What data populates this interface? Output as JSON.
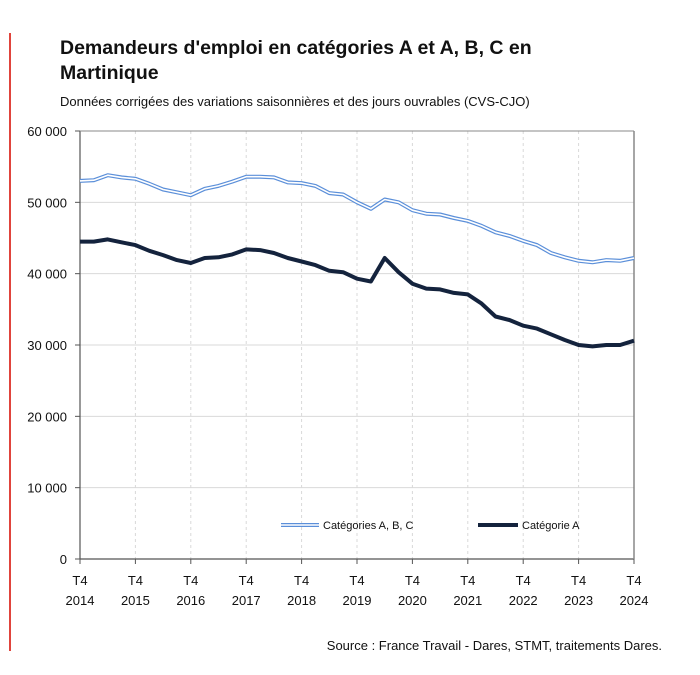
{
  "chart_data": {
    "type": "line",
    "title": "Demandeurs d'emploi en catégories A et A, B, C en Martinique",
    "subtitle": "Données corrigées des variations saisonnières et des jours ouvrables (CVS-CJO)",
    "source": "Source : France Travail - Dares, STMT, traitements Dares.",
    "x_start": "T4 2014",
    "x_end": "T4 2024",
    "frequency": "quarterly",
    "x_tick_labels": [
      [
        "T4",
        "2014"
      ],
      [
        "T4",
        "2015"
      ],
      [
        "T4",
        "2016"
      ],
      [
        "T4",
        "2017"
      ],
      [
        "T4",
        "2018"
      ],
      [
        "T4",
        "2019"
      ],
      [
        "T4",
        "2020"
      ],
      [
        "T4",
        "2021"
      ],
      [
        "T4",
        "2022"
      ],
      [
        "T4",
        "2023"
      ],
      [
        "T4",
        "2024"
      ]
    ],
    "y_tick_labels": [
      "0",
      "10 000",
      "20 000",
      "30 000",
      "40 000",
      "50 000",
      "60 000"
    ],
    "ylim": [
      0,
      60000
    ],
    "grid": true,
    "legend_position": "bottom-inside",
    "series": [
      {
        "name": "Catégories A, B, C",
        "color": "#5b8fd9",
        "style": "double",
        "values": [
          53000,
          53100,
          53800,
          53500,
          53300,
          52600,
          51800,
          51400,
          51000,
          51900,
          52300,
          52900,
          53600,
          53600,
          53500,
          52800,
          52700,
          52300,
          51300,
          51100,
          50000,
          49100,
          50400,
          50000,
          48900,
          48400,
          48300,
          47800,
          47400,
          46700,
          45800,
          45300,
          44600,
          44000,
          42900,
          42300,
          41800,
          41600,
          41900,
          41800,
          42200
        ]
      },
      {
        "name": "Catégorie A",
        "color": "#14233d",
        "style": "thick",
        "values": [
          44500,
          44500,
          44800,
          44400,
          44000,
          43200,
          42600,
          41900,
          41500,
          42200,
          42300,
          42700,
          43400,
          43300,
          42900,
          42200,
          41700,
          41200,
          40400,
          40200,
          39300,
          38900,
          42200,
          40200,
          38600,
          37900,
          37800,
          37300,
          37100,
          35800,
          34000,
          33500,
          32700,
          32300,
          31500,
          30700,
          30000,
          29800,
          30000,
          30000,
          30600
        ]
      }
    ]
  }
}
